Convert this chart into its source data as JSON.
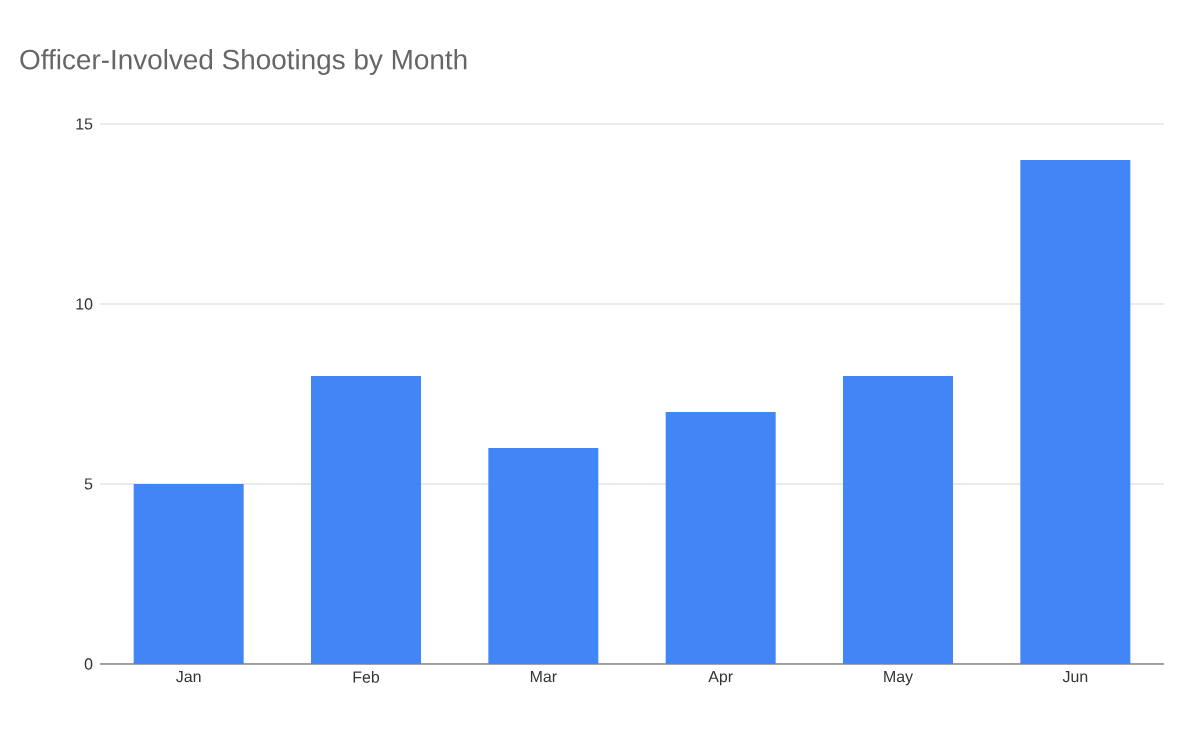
{
  "chart_data": {
    "type": "bar",
    "title": "Officer-Involved Shootings by Month",
    "categories": [
      "Jan",
      "Feb",
      "Mar",
      "Apr",
      "May",
      "Jun"
    ],
    "values": [
      5,
      8,
      6,
      7,
      8,
      14
    ],
    "color": "#4285f4",
    "ylim": [
      0,
      15
    ],
    "yticks": [
      0,
      5,
      10,
      15
    ],
    "grid": "y"
  }
}
